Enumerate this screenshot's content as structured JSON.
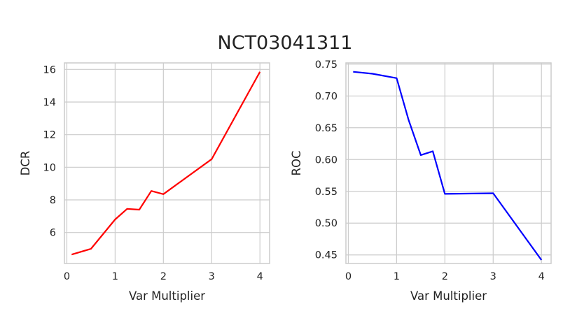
{
  "figure": {
    "title": "NCT03041311"
  },
  "chart_data": [
    {
      "type": "line",
      "xlabel": "Var Multiplier",
      "ylabel": "DCR",
      "xlim": [
        -0.05,
        4.2
      ],
      "ylim": [
        4.1,
        16.4
      ],
      "xticks": [
        0,
        1,
        2,
        3,
        4
      ],
      "yticks": [
        6,
        8,
        10,
        12,
        14,
        16
      ],
      "ytick_labels": [
        "6",
        "8",
        "10",
        "12",
        "14",
        "16"
      ],
      "grid": true,
      "color": "#ff0000",
      "x": [
        0.1,
        0.5,
        1.0,
        1.25,
        1.5,
        1.75,
        2.0,
        3.0,
        4.0
      ],
      "y": [
        4.65,
        5.0,
        6.8,
        7.45,
        7.4,
        8.55,
        8.35,
        10.5,
        15.85
      ]
    },
    {
      "type": "line",
      "xlabel": "Var Multiplier",
      "ylabel": "ROC",
      "xlim": [
        -0.05,
        4.2
      ],
      "ylim": [
        0.4365,
        0.752
      ],
      "xticks": [
        0,
        1,
        2,
        3,
        4
      ],
      "yticks": [
        0.45,
        0.5,
        0.55,
        0.6,
        0.65,
        0.7,
        0.75
      ],
      "ytick_labels": [
        "0.45",
        "0.50",
        "0.55",
        "0.60",
        "0.65",
        "0.70",
        "0.75"
      ],
      "grid": true,
      "color": "#0000ff",
      "x": [
        0.1,
        0.5,
        1.0,
        1.25,
        1.5,
        1.75,
        2.0,
        3.0,
        4.0
      ],
      "y": [
        0.738,
        0.735,
        0.728,
        0.662,
        0.607,
        0.613,
        0.546,
        0.547,
        0.442
      ]
    }
  ]
}
